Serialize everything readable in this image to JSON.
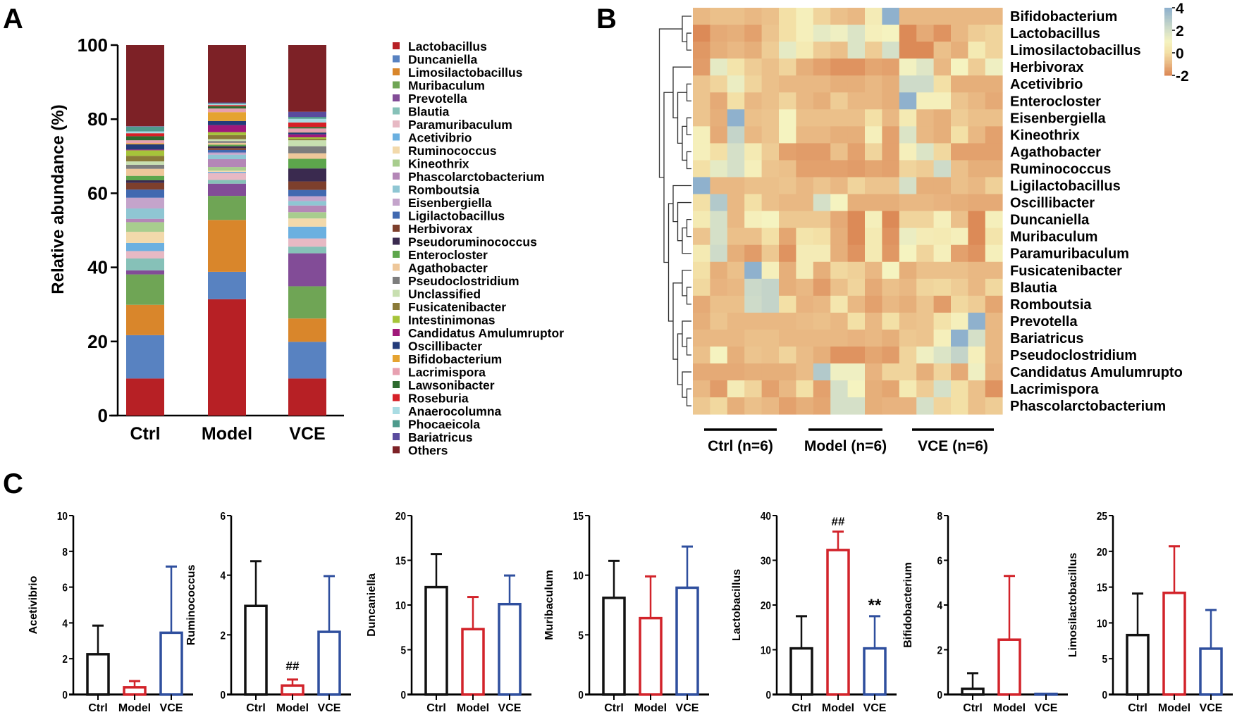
{
  "panel_letters": {
    "a": "A",
    "b": "B",
    "c": "C"
  },
  "chart_data": [
    {
      "id": "A",
      "type": "bar",
      "stacked": true,
      "ylabel": "Relative abundance (%)",
      "ylim": [
        0,
        100
      ],
      "yticks": [
        0,
        20,
        40,
        60,
        80,
        100
      ],
      "categories": [
        "Ctrl",
        "Model",
        "VCE"
      ],
      "legend_position": "right",
      "series": [
        {
          "name": "Lactobacillus",
          "color": "#b72025",
          "values": [
            10,
            31.4,
            10
          ]
        },
        {
          "name": "Duncaniella",
          "color": "#5882c1",
          "values": [
            11.7,
            7.4,
            9.9
          ]
        },
        {
          "name": "Limosilactobacillus",
          "color": "#d9862b",
          "values": [
            8.2,
            14,
            6.3
          ]
        },
        {
          "name": "Muribaculum",
          "color": "#6fa555",
          "values": [
            8.2,
            6.5,
            8.7
          ]
        },
        {
          "name": "Prevotella",
          "color": "#824c97",
          "values": [
            1.1,
            3.3,
            8.9
          ]
        },
        {
          "name": "Blautia",
          "color": "#86c1b8",
          "values": [
            3.2,
            1.0,
            1.8
          ]
        },
        {
          "name": "Paramuribaculum",
          "color": "#e7b9c4",
          "values": [
            2.0,
            1.9,
            2.2
          ]
        },
        {
          "name": "Acetivibrio",
          "color": "#6bb0e0",
          "values": [
            2.2,
            0.3,
            3.2
          ]
        },
        {
          "name": "Ruminococcus",
          "color": "#f2d9ab",
          "values": [
            3.0,
            0.3,
            2.2
          ]
        },
        {
          "name": "Kineothrix",
          "color": "#a8cd8e",
          "values": [
            2.6,
            1.0,
            1.7
          ]
        },
        {
          "name": "Phascolarctobacterium",
          "color": "#b487b7",
          "values": [
            0.9,
            2.1,
            1.8
          ]
        },
        {
          "name": "Romboutsia",
          "color": "#8fc6d3",
          "values": [
            2.8,
            1.2,
            1.2
          ]
        },
        {
          "name": "Eisenbergiella",
          "color": "#c4a4cb",
          "values": [
            2.9,
            0.6,
            1.3
          ]
        },
        {
          "name": "Ligilactobacillus",
          "color": "#4169b0",
          "values": [
            2.2,
            0.7,
            1.7
          ]
        },
        {
          "name": "Herbivorax",
          "color": "#7d3f2c",
          "values": [
            1.8,
            0.5,
            2.3
          ]
        },
        {
          "name": "Pseudoruminococcus",
          "color": "#3a2a4f",
          "values": [
            0.7,
            0.5,
            3.5
          ]
        },
        {
          "name": "Enterocloster",
          "color": "#5da64c",
          "values": [
            1.2,
            0.4,
            2.6
          ]
        },
        {
          "name": "Agathobacter",
          "color": "#eec79a",
          "values": [
            1.9,
            0.5,
            1.5
          ]
        },
        {
          "name": "Pseudoclostridium",
          "color": "#7d7d7d",
          "values": [
            1.1,
            0.5,
            1.9
          ]
        },
        {
          "name": "Unclassified",
          "color": "#c8dfb0",
          "values": [
            0.9,
            0.5,
            1.6
          ]
        },
        {
          "name": "Fusicatenibacter",
          "color": "#8a7a38",
          "values": [
            1.5,
            1.1,
            0.4
          ]
        },
        {
          "name": "Intestinimonas",
          "color": "#a6c43a",
          "values": [
            1.5,
            0.8,
            0.4
          ]
        },
        {
          "name": "Candidatus Amulumruptor",
          "color": "#a0187a",
          "values": [
            0.2,
            1.9,
            0.8
          ]
        },
        {
          "name": "Oscillibacter",
          "color": "#233b7a",
          "values": [
            1.4,
            1.1,
            0.5
          ]
        },
        {
          "name": "Bifidobacterium",
          "color": "#e5a331",
          "values": [
            0.3,
            2.4,
            0.1
          ]
        },
        {
          "name": "Lacrimispora",
          "color": "#e7a0b0",
          "values": [
            0.8,
            1.0,
            1.0
          ]
        },
        {
          "name": "Lawsonibacter",
          "color": "#2d6a2e",
          "values": [
            1.1,
            0.6,
            0.4
          ]
        },
        {
          "name": "Roseburia",
          "color": "#d62027",
          "values": [
            0.8,
            0.3,
            1.2
          ]
        },
        {
          "name": "Anaerocolumna",
          "color": "#a9dce3",
          "values": [
            0.5,
            0.3,
            1.0
          ]
        },
        {
          "name": "Phocaeicola",
          "color": "#4e9a8c",
          "values": [
            1.3,
            0.2,
            0.5
          ]
        },
        {
          "name": "Bariatricus",
          "color": "#5a4b9e",
          "values": [
            0.1,
            0.2,
            1.4
          ]
        },
        {
          "name": "Others",
          "color": "#7d2126",
          "values": [
            21.9,
            15.5,
            18.0
          ]
        }
      ]
    },
    {
      "id": "B",
      "type": "heatmap",
      "color_scale": {
        "min": -2,
        "max": 4,
        "ticks": [
          "4",
          "2",
          "0",
          "-2"
        ],
        "tick_values": [
          4,
          2,
          0,
          -2
        ],
        "stops": [
          [
            -2,
            "#dc8a57"
          ],
          [
            -1,
            "#e9b883"
          ],
          [
            0,
            "#f3e0a6"
          ],
          [
            1,
            "#f5f3c0"
          ],
          [
            2,
            "#d5e0c8"
          ],
          [
            4,
            "#8fb1cd"
          ]
        ]
      },
      "groups": [
        "Ctrl (n=6)",
        "Model (n=6)",
        "VCE (n=6)"
      ],
      "rows": [
        "Bifidobacterium",
        "Lactobacillus",
        "Limosilactobacillus",
        "Herbivorax",
        "Acetivibrio",
        "Enterocloster",
        "Eisenbergiella",
        "Kineothrix",
        "Agathobacter",
        "Ruminococcus",
        "Ligilactobacillus",
        "Oscillibacter",
        "Duncaniella",
        "Muribaculum",
        "Paramuribaculum",
        "Fusicatenibacter",
        "Blautia",
        "Romboutsia",
        "Prevotella",
        "Bariatricus",
        "Pseudoclostridium",
        "Candidatus  Amulumrupto",
        "Lacrimispora",
        "Phascolarctobacterium"
      ],
      "values": [
        [
          -1,
          -0.8,
          -0.8,
          -1,
          -0.8,
          0,
          0.8,
          -0.3,
          -0.8,
          -1,
          0.6,
          4,
          -1,
          -1,
          -1,
          -1,
          -1,
          -1
        ],
        [
          -2,
          -1.3,
          -1.2,
          -1.5,
          -0.7,
          0,
          0.8,
          1.5,
          1.2,
          1.8,
          0.8,
          1,
          -2,
          -1.3,
          -1.8,
          -1,
          -0.5,
          -0.3
        ],
        [
          -1.7,
          -1.2,
          -1,
          -1.2,
          -0.5,
          1.5,
          0.5,
          -0.5,
          -0.8,
          1.8,
          -0.5,
          2,
          -2,
          -2.2,
          -0.8,
          -1.2,
          0.5,
          -0.3
        ],
        [
          -1.6,
          1.5,
          0.2,
          -0.5,
          -0.8,
          -0.3,
          -1.2,
          -1.5,
          -1.8,
          -1.8,
          -1.4,
          -1.5,
          1.1,
          1.7,
          -1,
          1,
          -0.5,
          1.2
        ],
        [
          -0.7,
          -0.3,
          1.3,
          -0.3,
          -0.8,
          -1,
          -1,
          -1,
          -1.2,
          -1.2,
          -1,
          -1.2,
          2.2,
          2.2,
          0,
          -1.2,
          -1.2,
          -1.2
        ],
        [
          -0.7,
          -1.3,
          0,
          -1,
          -0.8,
          -0.3,
          -1,
          -1.2,
          -0.5,
          -1,
          -1,
          -1.2,
          4,
          0.8,
          0.8,
          -0.7,
          -1,
          -1.3
        ],
        [
          -0.7,
          -1.2,
          4,
          -0.8,
          -0.7,
          1,
          -0.8,
          -0.8,
          -0.8,
          -0.8,
          0,
          -1,
          0.5,
          -1,
          -1.2,
          -0.5,
          -0.8,
          -0.8
        ],
        [
          0.8,
          -1.3,
          2.5,
          -1,
          -0.7,
          1,
          -1,
          -1,
          -1.2,
          -1.2,
          0.8,
          -1.5,
          1.8,
          -1,
          -1.2,
          0,
          -1,
          -1.5
        ],
        [
          0.8,
          0,
          2,
          0.5,
          -0.5,
          -1.5,
          -1.6,
          -1.6,
          -0.8,
          -1.5,
          -0.3,
          -1.5,
          0.8,
          1.8,
          -0.2,
          -1.5,
          -1.5,
          -1.5
        ],
        [
          0,
          1.5,
          2,
          0.8,
          -0.7,
          -0.8,
          -1.5,
          -1.5,
          -1.5,
          -1.6,
          -1.4,
          -1.5,
          -0.3,
          -0.5,
          2.2,
          -0.8,
          -1.2,
          -1.2
        ],
        [
          4,
          -1,
          -1,
          -0.8,
          -0.8,
          -0.7,
          -1,
          -0.7,
          -1,
          -0.3,
          -0.7,
          -0.7,
          2,
          -1.2,
          -1.2,
          -0.8,
          -1,
          -0.4
        ],
        [
          0,
          3,
          -1,
          0,
          -0.8,
          -1,
          -1,
          2,
          1,
          -1.2,
          -1.2,
          -1.2,
          -1,
          -1,
          -1.1,
          -1.2,
          -1.3,
          -1.3
        ],
        [
          0.5,
          2,
          -1,
          0.8,
          1,
          -0.6,
          -0.6,
          -0.6,
          -1.3,
          -2,
          0.8,
          -2,
          -0.3,
          -0.3,
          0.8,
          -0.8,
          -2,
          0.8
        ],
        [
          -0.7,
          2,
          -0.8,
          -0.8,
          0,
          -1.4,
          0.2,
          0,
          -1.2,
          -2.2,
          0.5,
          -1.8,
          1.3,
          0.6,
          0.5,
          0.8,
          -2.2,
          0.2
        ],
        [
          0.5,
          2.2,
          -1.2,
          -1.6,
          -0.6,
          -1.8,
          0.6,
          0.6,
          -1.2,
          -1.8,
          0.5,
          -1.7,
          1,
          -0.3,
          0.8,
          -1.5,
          -1.8,
          0.8
        ],
        [
          0,
          -1.2,
          -0.8,
          4,
          0.8,
          -1.2,
          0.6,
          -1.2,
          -0.2,
          -0.4,
          -1,
          1,
          -1.2,
          -0.8,
          -0.8,
          -0.8,
          -1,
          -1
        ],
        [
          -0.2,
          -1.1,
          -1,
          2.3,
          2.5,
          -1.2,
          -1,
          -1.6,
          -0.8,
          -0.3,
          -1.3,
          -0.8,
          -1,
          -0.3,
          -0.2,
          -0.5,
          -1,
          -0.2
        ],
        [
          -1.3,
          -0.8,
          -0.8,
          2.2,
          2.5,
          0,
          -1.1,
          -1,
          0.3,
          -1,
          -1.5,
          -1,
          -1.2,
          -0.7,
          -1.6,
          -0.2,
          -0.5,
          -1.4
        ],
        [
          -1.2,
          -0.7,
          -1,
          -1,
          -1,
          -1,
          -0.9,
          -0.8,
          -1,
          0,
          -1,
          0,
          -0.8,
          -0.7,
          0.1,
          0.8,
          4,
          -1
        ],
        [
          -1,
          -1,
          -1,
          -0.8,
          -0.8,
          -1,
          -1,
          -1,
          -1,
          -1.1,
          -1,
          -1.2,
          -0.6,
          -0.7,
          0.8,
          4,
          2,
          -1
        ],
        [
          -0.8,
          1,
          -1.2,
          -0.7,
          -0.8,
          -0.3,
          -0.9,
          -1.2,
          -1.8,
          -1.8,
          -1.4,
          -1.6,
          -0.3,
          1.2,
          1.8,
          2.5,
          0.8,
          -1
        ],
        [
          -1.3,
          -1.3,
          -1.3,
          -1.2,
          -1.2,
          -1.2,
          -0.9,
          3,
          1.2,
          1.2,
          -1.1,
          -0.3,
          -0.3,
          -1.2,
          -0.3,
          -1.3,
          1.2,
          -1.1
        ],
        [
          -1,
          -1.6,
          0.6,
          -0.3,
          -1.5,
          -1,
          0,
          -1.5,
          2,
          1,
          -1.2,
          -1.4,
          0.5,
          -0.5,
          2,
          0,
          -0.8,
          -1.8
        ],
        [
          -0.6,
          -0.2,
          -1.2,
          -0.8,
          -1,
          -1.5,
          -1.2,
          -1.4,
          2,
          2,
          -1.2,
          -1.1,
          -1.1,
          2,
          -0.3,
          0,
          -0.8,
          -0.5
        ]
      ]
    },
    {
      "id": "C",
      "type": "bar",
      "error_bars": "SD",
      "categories": [
        "Ctrl",
        "Model",
        "VCE"
      ],
      "colors": [
        "#111111",
        "#d2232a",
        "#2f4f9e"
      ],
      "panels": [
        {
          "ylabel": "Acetivibrio",
          "ylim": [
            0,
            10
          ],
          "yticks": [
            "0",
            "2",
            "4",
            "6",
            "8",
            "10"
          ],
          "means": [
            2.25,
            0.4,
            3.45
          ],
          "sd": [
            1.6,
            0.35,
            3.7
          ],
          "annotations": [
            "",
            "",
            ""
          ]
        },
        {
          "ylabel": "Ruminococcus",
          "ylim": [
            0,
            6
          ],
          "yticks": [
            "0",
            "2",
            "4",
            "6"
          ],
          "means": [
            2.97,
            0.3,
            2.1
          ],
          "sd": [
            1.5,
            0.2,
            1.87
          ],
          "annotations": [
            "",
            "##",
            ""
          ]
        },
        {
          "ylabel": "Duncaniella",
          "ylim": [
            0,
            20
          ],
          "yticks": [
            "0",
            "5",
            "10",
            "15",
            "20"
          ],
          "means": [
            12,
            7.3,
            10.1
          ],
          "sd": [
            3.7,
            3.6,
            3.2
          ],
          "annotations": [
            "",
            "",
            ""
          ]
        },
        {
          "ylabel": "Muribaculum",
          "ylim": [
            0,
            15
          ],
          "yticks": [
            "0",
            "5",
            "10",
            "15"
          ],
          "means": [
            8.1,
            6.4,
            8.95
          ],
          "sd": [
            3.1,
            3.5,
            3.45
          ],
          "annotations": [
            "",
            "",
            ""
          ]
        },
        {
          "ylabel": "Lactobacillus",
          "ylim": [
            0,
            40
          ],
          "yticks": [
            "0",
            "10",
            "20",
            "30",
            "40"
          ],
          "means": [
            10.3,
            32.3,
            10.3
          ],
          "sd": [
            7.2,
            4.1,
            7.2
          ],
          "annotations": [
            "",
            "##",
            "**"
          ]
        },
        {
          "ylabel": "Bifidobacterium",
          "ylim": [
            0,
            8
          ],
          "yticks": [
            "0",
            "2",
            "4",
            "6",
            "8"
          ],
          "means": [
            0.25,
            2.45,
            0.02
          ],
          "sd": [
            0.7,
            2.85,
            0
          ],
          "annotations": [
            "",
            "",
            ""
          ]
        },
        {
          "ylabel": "Limosilactobacillus",
          "ylim": [
            0,
            25
          ],
          "yticks": [
            "0",
            "5",
            "10",
            "15",
            "20",
            "25"
          ],
          "means": [
            8.3,
            14.2,
            6.4
          ],
          "sd": [
            5.8,
            6.5,
            5.4
          ],
          "annotations": [
            "",
            "",
            ""
          ]
        }
      ]
    }
  ]
}
